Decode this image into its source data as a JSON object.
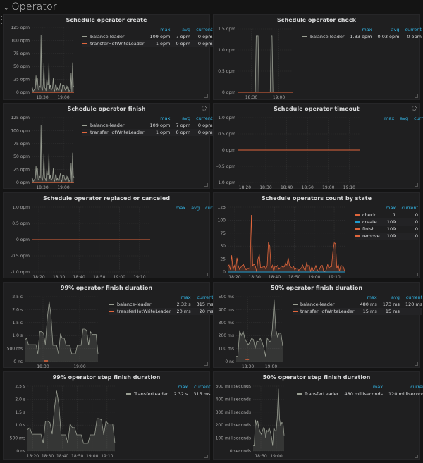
{
  "row": {
    "title": "Operator",
    "collapse_icon": "chevron-down-icon"
  },
  "colors": {
    "background": "#141414",
    "panel": "#1f1f20",
    "accent": "#33b5e5",
    "grey_series": "#9a9f93",
    "orange_series": "#e0663c",
    "blue_series": "#1f9ccf"
  },
  "panels": [
    {
      "id": "schedule-operator-create",
      "title": "Schedule operator create",
      "legend_headers": [
        "max",
        "avg",
        "current"
      ],
      "legend": [
        {
          "name": "balance-leader",
          "color": "#9a9f93",
          "max": "109 opm",
          "avg": "7 opm",
          "current": "0 opm"
        },
        {
          "name": "transferHotWriteLeader",
          "color": "#e0663c",
          "max": "1 opm",
          "avg": "0 opm",
          "current": "0 opm"
        }
      ],
      "y_ticks": [
        "125 opm",
        "100 opm",
        "75 opm",
        "50 opm",
        "25 opm",
        "0 opm"
      ],
      "x_ticks": [
        "18:30",
        "19:00"
      ]
    },
    {
      "id": "schedule-operator-check",
      "title": "Schedule operator check",
      "legend_headers": [
        "max",
        "avg",
        "current"
      ],
      "legend": [
        {
          "name": "balance-leader",
          "color": "#9a9f93",
          "max": "1.33 opm",
          "avg": "0.03 opm",
          "current": "0 opm"
        }
      ],
      "y_ticks": [
        "1.5 opm",
        "1.0 opm",
        "0.5 opm",
        "0 opm"
      ],
      "x_ticks": [
        "18:30",
        "19:00"
      ]
    },
    {
      "id": "schedule-operator-finish",
      "title": "Schedule operator finish",
      "legend_headers": [
        "max",
        "avg",
        "current"
      ],
      "legend": [
        {
          "name": "balance-leader",
          "color": "#9a9f93",
          "max": "109 opm",
          "avg": "7 opm",
          "current": "0 opm"
        },
        {
          "name": "transferHotWriteLeader",
          "color": "#e0663c",
          "max": "1 opm",
          "avg": "0 opm",
          "current": "0 opm"
        }
      ],
      "y_ticks": [
        "125 opm",
        "100 opm",
        "75 opm",
        "50 opm",
        "25 opm",
        "0 opm"
      ],
      "x_ticks": [
        "18:30",
        "19:00"
      ]
    },
    {
      "id": "schedule-operator-timeout",
      "title": "Schedule operator timeout",
      "legend_headers": [
        "max",
        "avg",
        "current"
      ],
      "legend": [],
      "y_ticks": [
        "1.0 opm",
        "0.5 opm",
        "0 opm",
        "-0.5 opm",
        "-1.0 opm"
      ],
      "x_ticks": [
        "18:20",
        "18:30",
        "18:40",
        "18:50",
        "19:00",
        "19:10"
      ]
    },
    {
      "id": "schedule-operator-replaced-or-canceled",
      "title": "Schedule operator replaced or canceled",
      "legend_headers": [
        "max",
        "avg",
        "current"
      ],
      "legend": [],
      "y_ticks": [
        "1.0 opm",
        "0.5 opm",
        "0 opm",
        "-0.5 opm",
        "-1.0 opm"
      ],
      "x_ticks": [
        "18:20",
        "18:30",
        "18:40",
        "18:50",
        "19:00",
        "19:10"
      ]
    },
    {
      "id": "schedule-operators-count-by-state",
      "title": "Schedule operators count by state",
      "legend_headers": [
        "max",
        "current"
      ],
      "legend": [
        {
          "name": "check",
          "color": "#e0663c",
          "max": "1",
          "current": "0"
        },
        {
          "name": "create",
          "color": "#1f9ccf",
          "max": "109",
          "current": "0"
        },
        {
          "name": "finish",
          "color": "#e0663c",
          "max": "109",
          "current": "0"
        },
        {
          "name": "remove",
          "color": "#e0663c",
          "max": "109",
          "current": "0"
        }
      ],
      "y_ticks": [
        "125",
        "100",
        "75",
        "50",
        "25",
        "0"
      ],
      "x_ticks": [
        "18:20",
        "18:30",
        "18:40",
        "18:50",
        "19:00",
        "19:10"
      ]
    },
    {
      "id": "p99-operator-finish-duration",
      "title": "99% operator finish duration",
      "legend_headers": [
        "max",
        "current"
      ],
      "legend": [
        {
          "name": "balance-leader",
          "color": "#9a9f93",
          "max": "2.32 s",
          "current": "315 ms"
        },
        {
          "name": "transferHotWriteLeader",
          "color": "#e0663c",
          "max": "20 ms",
          "current": "20 ms"
        }
      ],
      "y_ticks": [
        "2.5 s",
        "2.0 s",
        "1.5 s",
        "1.0 s",
        "500 ms",
        "0 ns"
      ],
      "x_ticks": [
        "18:30",
        "19:00"
      ]
    },
    {
      "id": "p50-operator-finish-duration",
      "title": "50% operator finish duration",
      "legend_headers": [
        "max",
        "avg",
        "current"
      ],
      "legend": [
        {
          "name": "balance-leader",
          "color": "#9a9f93",
          "max": "480 ms",
          "avg": "173 ms",
          "current": "120 ms"
        },
        {
          "name": "transferHotWriteLeader",
          "color": "#e0663c",
          "max": "15 ms",
          "avg": "15 ms",
          "current": ""
        }
      ],
      "y_ticks": [
        "500 ms",
        "400 ms",
        "300 ms",
        "200 ms",
        "100 ms",
        "0 ns"
      ],
      "x_ticks": [
        "18:30",
        "19:00"
      ]
    },
    {
      "id": "p99-operator-step-finish-duration",
      "title": "99% operator step finish duration",
      "legend_headers": [
        "max",
        "current"
      ],
      "legend": [
        {
          "name": "TransferLeader",
          "color": "#9a9f93",
          "max": "2.32 s",
          "current": "315 ms"
        }
      ],
      "y_ticks": [
        "2.5 s",
        "2.0 s",
        "1.5 s",
        "1.0 s",
        "500 ms",
        "0 ns"
      ],
      "x_ticks": [
        "18:20",
        "18:30",
        "18:40",
        "18:50",
        "19:00",
        "19:10"
      ]
    },
    {
      "id": "p50-operator-step-finish-duration",
      "title": "50% operator step finish duration",
      "legend_headers": [
        "max",
        "current"
      ],
      "legend": [
        {
          "name": "TransferLeader",
          "color": "#9a9f93",
          "max": "480 milliseconds",
          "current": "120 milliseconds"
        }
      ],
      "y_ticks": [
        "500 milliseconds",
        "400 milliseconds",
        "300 milliseconds",
        "200 milliseconds",
        "100 milliseconds",
        "0 seconds"
      ],
      "x_ticks": [
        "18:30",
        "19:00"
      ]
    }
  ]
}
